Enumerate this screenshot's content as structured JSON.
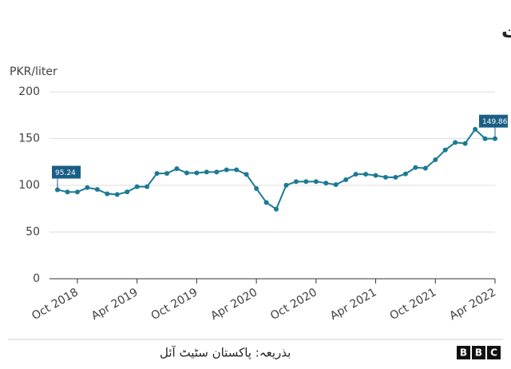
{
  "chart_data": {
    "type": "line",
    "title": "پاکستان میں پیٹرول کی قیمت",
    "y_label": "PKR/liter",
    "source": "بذریعہ: پاکستان سٹیٹ آئل",
    "logo": [
      "B",
      "B",
      "C"
    ],
    "x": [
      "2018-08",
      "2018-09",
      "2018-10",
      "2018-11",
      "2018-12",
      "2019-01",
      "2019-02",
      "2019-03",
      "2019-04",
      "2019-05",
      "2019-06",
      "2019-07",
      "2019-08",
      "2019-09",
      "2019-10",
      "2019-11",
      "2019-12",
      "2020-01",
      "2020-02",
      "2020-03",
      "2020-04",
      "2020-05",
      "2020-06",
      "2020-07",
      "2020-08",
      "2020-09",
      "2020-10",
      "2020-11",
      "2020-12",
      "2021-01",
      "2021-02",
      "2021-03",
      "2021-04",
      "2021-05",
      "2021-06",
      "2021-07",
      "2021-08",
      "2021-09",
      "2021-10",
      "2021-11",
      "2021-12",
      "2022-01",
      "2022-02",
      "2022-03",
      "2022-04"
    ],
    "series": [
      {
        "color": "#1b7a93",
        "values": [
          95.24,
          92.8,
          92.8,
          97.5,
          95.6,
          90.9,
          90.2,
          92.9,
          98.5,
          98.5,
          112.7,
          112.7,
          117.8,
          113.2,
          113.2,
          114.2,
          114.2,
          116.6,
          116.6,
          111.6,
          96.6,
          81.6,
          74.5,
          100.1,
          104,
          104,
          104,
          102.4,
          100.7,
          106,
          111.9,
          111.9,
          110.6,
          108.6,
          108.6,
          112.2,
          119,
          118.3,
          127.3,
          137.8,
          145.8,
          144.8,
          159.9,
          149.9,
          149.86
        ]
      }
    ],
    "xlim": [
      "2018-08",
      "2022-04"
    ],
    "xticks": [
      {
        "value": "2018-10",
        "label": "Oct 2018"
      },
      {
        "value": "2019-04",
        "label": "Apr 2019"
      },
      {
        "value": "2019-10",
        "label": "Oct 2019"
      },
      {
        "value": "2020-04",
        "label": "Apr 2020"
      },
      {
        "value": "2020-10",
        "label": "Oct 2020"
      },
      {
        "value": "2021-04",
        "label": "Apr 2021"
      },
      {
        "value": "2021-10",
        "label": "Oct 2021"
      },
      {
        "value": "2022-04",
        "label": "Apr 2022"
      }
    ],
    "ylim": [
      0,
      200
    ],
    "yticks": [
      0,
      50,
      100,
      150,
      200
    ],
    "grid": true,
    "label_color": "#1a5f85"
  }
}
